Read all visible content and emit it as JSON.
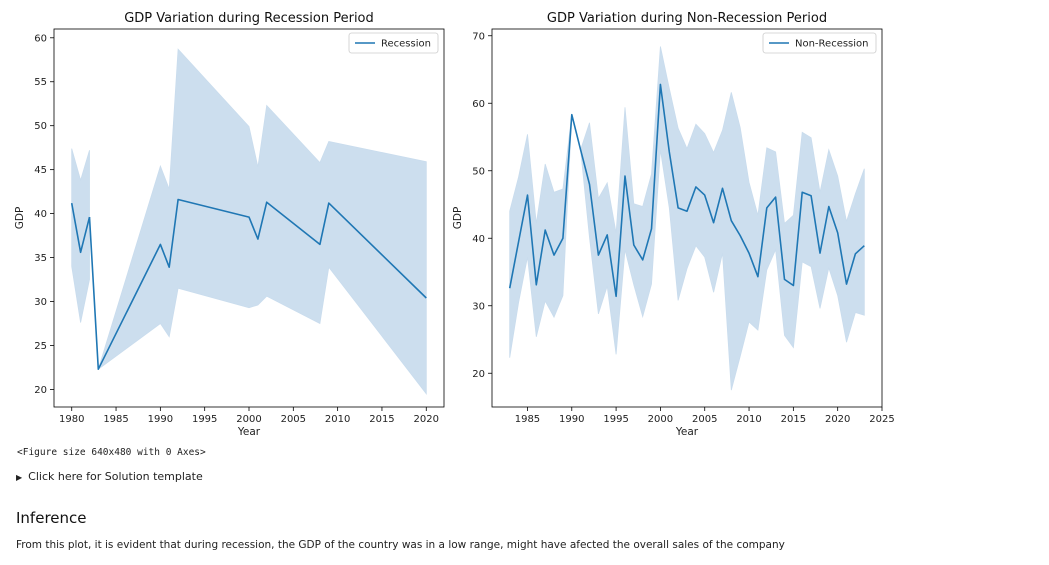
{
  "chart_data": [
    {
      "type": "line",
      "title": "GDP Variation during Recession Period",
      "xlabel": "Year",
      "ylabel": "GDP",
      "xlim": [
        1978,
        2022
      ],
      "ylim": [
        18,
        61
      ],
      "xticks": [
        1980,
        1985,
        1990,
        1995,
        2000,
        2005,
        2010,
        2015,
        2020
      ],
      "yticks": [
        20,
        25,
        30,
        35,
        40,
        45,
        50,
        55,
        60
      ],
      "legend_position": "top-right",
      "color": "#1f77b4",
      "band_color": "#c9dced",
      "series": [
        {
          "name": "Recession",
          "segments": [
            {
              "x": [
                1980,
                1981,
                1982
              ],
              "y": [
                41.2,
                35.6,
                39.6
              ],
              "lower": [
                34,
                27.6,
                32.5
              ],
              "upper": [
                47.4,
                43.8,
                47.2
              ]
            },
            {
              "x": [
                1982,
                1983,
                1990,
                1991,
                1992,
                2000,
                2001,
                2002,
                2008,
                2009,
                2020
              ],
              "y": [
                39.6,
                22.3,
                36.5,
                33.9,
                41.6,
                39.6,
                37.1,
                41.3,
                36.5,
                41.2,
                30.4
              ],
              "lower": [
                39.6,
                22.3,
                27.5,
                26,
                31.5,
                29.3,
                29.6,
                30.6,
                27.5,
                33.9,
                19.5
              ],
              "upper": [
                39.6,
                22.3,
                45.4,
                42.8,
                58.7,
                49.9,
                45.3,
                52.3,
                45.8,
                48.2,
                45.9
              ]
            }
          ]
        }
      ]
    },
    {
      "type": "line",
      "title": "GDP Variation during Non-Recession Period",
      "xlabel": "Year",
      "ylabel": "GDP",
      "xlim": [
        1981,
        2025
      ],
      "ylim": [
        15,
        71
      ],
      "xticks": [
        1985,
        1990,
        1995,
        2000,
        2005,
        2010,
        2015,
        2020,
        2025
      ],
      "yticks": [
        20,
        30,
        40,
        50,
        60,
        70
      ],
      "legend_position": "top-right",
      "color": "#1f77b4",
      "band_color": "#c9dced",
      "series": [
        {
          "name": "Non-Recession",
          "segments": [
            {
              "x": [
                1983,
                1984,
                1985,
                1986,
                1987,
                1988,
                1989,
                1990,
                1991,
                1992,
                1993,
                1994,
                1995,
                1996,
                1997,
                1998,
                1999,
                2000,
                2001,
                2002,
                2003,
                2004,
                2005,
                2006,
                2007,
                2008,
                2009,
                2010,
                2011,
                2012,
                2013,
                2014,
                2015,
                2016,
                2017,
                2018,
                2019,
                2020,
                2021,
                2022,
                2023
              ],
              "y": [
                32.6,
                39.5,
                46.4,
                33.1,
                41.2,
                37.5,
                40,
                58.3,
                53.1,
                48,
                37.5,
                40.5,
                31.4,
                49.2,
                39,
                36.8,
                41.4,
                62.8,
                52.8,
                44.5,
                44,
                47.6,
                46.4,
                42.3,
                47.4,
                42.6,
                40.4,
                37.8,
                34.3,
                44.5,
                46.1,
                33.9,
                33,
                46.8,
                46.3,
                37.8,
                44.7,
                40.8,
                33.2,
                37.7,
                38.9
              ],
              "lower": [
                22.3,
                30.5,
                37.2,
                25.4,
                30.7,
                28.3,
                31.5,
                58.3,
                53.1,
                40.1,
                28.8,
                32.9,
                22.8,
                38.3,
                33.1,
                28.4,
                33.2,
                53.1,
                44.5,
                30.8,
                35.5,
                38.9,
                37.2,
                32,
                37.8,
                17.5,
                22.5,
                27.6,
                26.4,
                35.3,
                38.3,
                25.6,
                23.8,
                36.5,
                35.8,
                29.6,
                35.6,
                31.5,
                24.6,
                29,
                28.6
              ],
              "upper": [
                44,
                49.1,
                55.4,
                42.2,
                51,
                46.8,
                47.3,
                58.3,
                53.1,
                57.1,
                45.9,
                48.2,
                40.8,
                59.4,
                45.1,
                44.7,
                49.5,
                68.4,
                62.2,
                56.3,
                53.3,
                56.9,
                55.5,
                52.7,
                56,
                61.6,
                56.4,
                48.3,
                43.4,
                53.4,
                52.8,
                42.2,
                43.4,
                55.7,
                54.9,
                46.8,
                53.1,
                49.2,
                42.5,
                46.6,
                50.3
              ]
            }
          ]
        }
      ]
    }
  ],
  "figure_note": "<Figure size 640x480 with 0 Axes>",
  "solution_toggle": {
    "arrow": "▶",
    "label": "Click here for Solution template"
  },
  "inference": {
    "title": "Inference",
    "text": "From this plot, it is evident that during recession, the GDP of the country was in a low range, might have afected the overall sales of the company"
  }
}
